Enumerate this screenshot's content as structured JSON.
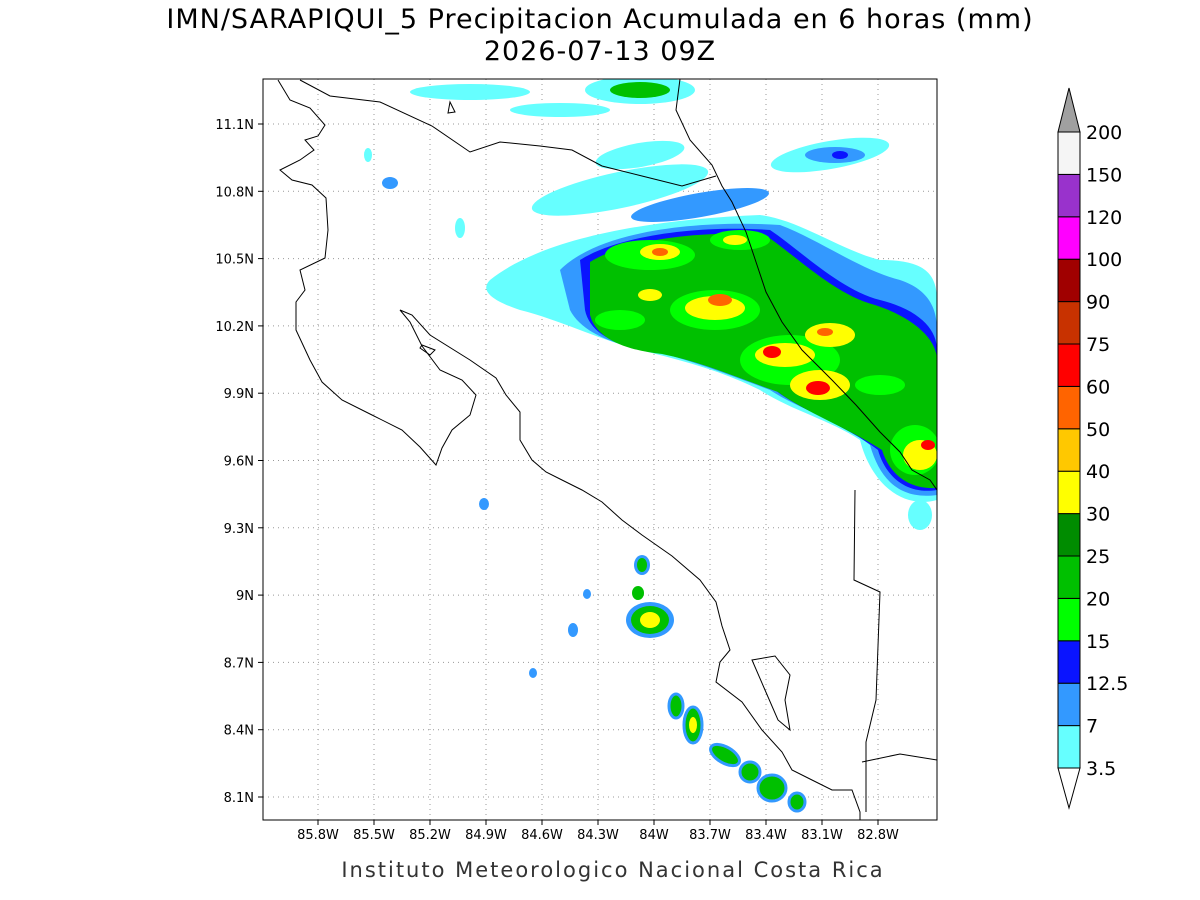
{
  "title": {
    "line1": "IMN/SARAPIQUI_5 Precipitacion Acumulada en 6 horas (mm)",
    "line2": "2026-07-13 09Z"
  },
  "map": {
    "lat_ticks": [
      "11.1N",
      "10.8N",
      "10.5N",
      "10.2N",
      "9.9N",
      "9.6N",
      "9.3N",
      "9N",
      "8.7N",
      "8.4N",
      "8.1N"
    ],
    "lon_ticks": [
      "85.8W",
      "85.5W",
      "85.2W",
      "84.9W",
      "84.6W",
      "84.3W",
      "84W",
      "83.7W",
      "83.4W",
      "83.1W",
      "82.8W"
    ]
  },
  "colorbar": {
    "levels": [
      3.5,
      7,
      12.5,
      15,
      20,
      25,
      30,
      40,
      50,
      60,
      75,
      90,
      100,
      120,
      150,
      200
    ],
    "colors": [
      "#66ffff",
      "#3399ff",
      "#0a14ff",
      "#00ff00",
      "#00c000",
      "#008c00",
      "#ffff00",
      "#ffc800",
      "#ff6400",
      "#ff0000",
      "#c83200",
      "#a00000",
      "#ff00ff",
      "#9932cc",
      "#f5f5f5"
    ],
    "over_color": "#a0a0a0"
  },
  "footer": "Instituto Meteorologico Nacional Costa Rica"
}
